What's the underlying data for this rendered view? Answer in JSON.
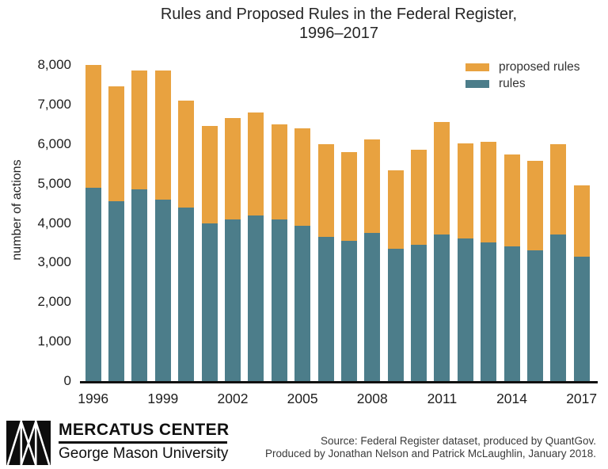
{
  "chart": {
    "title_line1": "Rules and Proposed Rules in the Federal Register,",
    "title_line2": "1996–2017"
  },
  "chart_data": {
    "type": "bar",
    "stacked": true,
    "title": "Rules and Proposed Rules in the Federal Register, 1996–2017",
    "xlabel": "",
    "ylabel": "number of actions",
    "ylim": [
      0,
      8000
    ],
    "ytick_step": 1000,
    "grid": false,
    "legend_position": "top-right",
    "categories": [
      "1996",
      "1997",
      "1998",
      "1999",
      "2000",
      "2001",
      "2002",
      "2003",
      "2004",
      "2005",
      "2006",
      "2007",
      "2008",
      "2009",
      "2010",
      "2011",
      "2012",
      "2013",
      "2014",
      "2015",
      "2016",
      "2017"
    ],
    "xtick_labels": [
      "1996",
      "1999",
      "2002",
      "2005",
      "2008",
      "2011",
      "2014",
      "2017"
    ],
    "series": [
      {
        "name": "rules",
        "color": "#4C7D8A",
        "values": [
          4900,
          4550,
          4850,
          4600,
          4400,
          4000,
          4100,
          4200,
          4100,
          3925,
          3650,
          3550,
          3750,
          3350,
          3450,
          3700,
          3600,
          3500,
          3400,
          3300,
          3700,
          3150
        ]
      },
      {
        "name": "proposed rules",
        "color": "#E8A240",
        "values": [
          3100,
          2900,
          3000,
          3250,
          2700,
          2450,
          2550,
          2600,
          2400,
          2475,
          2350,
          2250,
          2375,
          1975,
          2400,
          2850,
          2425,
          2550,
          2325,
          2275,
          2300,
          1800
        ]
      }
    ]
  },
  "footer": {
    "logo_title": "MERCATUS CENTER",
    "logo_subtitle": "George Mason University",
    "source_line1": "Source: Federal Register dataset, produced by QuantGov.",
    "source_line2": "Produced by Jonathan Nelson and Patrick McLaughlin, January 2018."
  }
}
